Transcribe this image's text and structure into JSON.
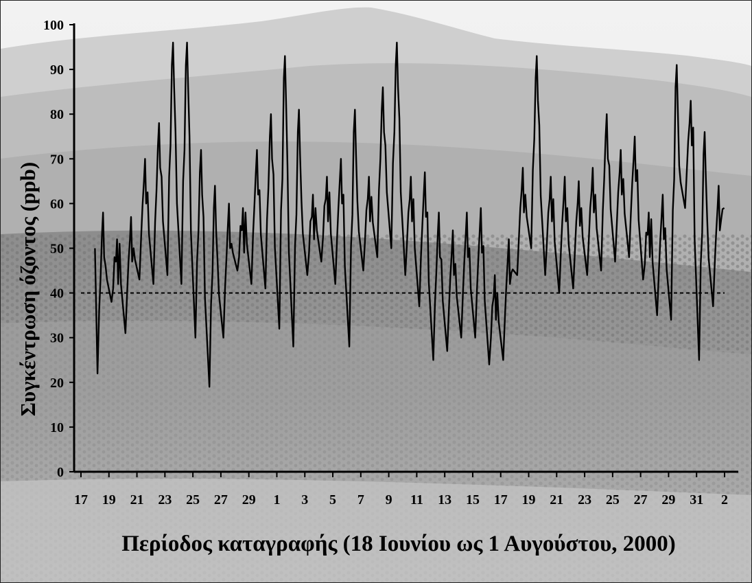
{
  "chart_data": {
    "type": "line",
    "title": "",
    "xlabel": "Περίοδος καταγραφής (18 Ιουνίου ως 1 Αυγούστου, 2000)",
    "ylabel": "Συγκέντρωση όζοντος (ppb)",
    "ylim": [
      0,
      100
    ],
    "xlim_days": [
      17,
      63
    ],
    "x_tick_labels": [
      "17",
      "19",
      "21",
      "23",
      "25",
      "27",
      "29",
      "1",
      "3",
      "5",
      "7",
      "9",
      "11",
      "13",
      "15",
      "17",
      "19",
      "21",
      "23",
      "25",
      "27",
      "29",
      "31",
      "2"
    ],
    "y_tick_labels": [
      "0",
      "10",
      "20",
      "30",
      "40",
      "50",
      "60",
      "70",
      "80",
      "90",
      "100"
    ],
    "reference_line": {
      "y": 40,
      "style": "dashed"
    },
    "grid": false,
    "background": "grayscale hillside forest photograph",
    "colors": {
      "line": "#000000",
      "reference": "#000000"
    },
    "series": [
      {
        "name": "",
        "daily_extremes": [
          {
            "date": "18 Jun",
            "max": 58,
            "min": 22
          },
          {
            "date": "19 Jun",
            "max": 52,
            "min": 38
          },
          {
            "date": "20 Jun",
            "max": 57,
            "min": 31
          },
          {
            "date": "21 Jun",
            "max": 70,
            "min": 43
          },
          {
            "date": "22 Jun",
            "max": 78,
            "min": 42
          },
          {
            "date": "23 Jun",
            "max": 96,
            "min": 44
          },
          {
            "date": "24 Jun",
            "max": 96,
            "min": 42
          },
          {
            "date": "25 Jun",
            "max": 72,
            "min": 30
          },
          {
            "date": "26 Jun",
            "max": 64,
            "min": 19
          },
          {
            "date": "27 Jun",
            "max": 60,
            "min": 30
          },
          {
            "date": "28 Jun",
            "max": 59,
            "min": 45
          },
          {
            "date": "29 Jun",
            "max": 72,
            "min": 42
          },
          {
            "date": "30 Jun",
            "max": 80,
            "min": 41
          },
          {
            "date": "1 Jul",
            "max": 93,
            "min": 32
          },
          {
            "date": "2 Jul",
            "max": 81,
            "min": 28
          },
          {
            "date": "3 Jul",
            "max": 62,
            "min": 44
          },
          {
            "date": "4 Jul",
            "max": 66,
            "min": 47
          },
          {
            "date": "5 Jul",
            "max": 70,
            "min": 42
          },
          {
            "date": "6 Jul",
            "max": 81,
            "min": 28
          },
          {
            "date": "7 Jul",
            "max": 66,
            "min": 45
          },
          {
            "date": "8 Jul",
            "max": 86,
            "min": 48
          },
          {
            "date": "9 Jul",
            "max": 96,
            "min": 50
          },
          {
            "date": "10 Jul",
            "max": 66,
            "min": 44
          },
          {
            "date": "11 Jul",
            "max": 67,
            "min": 37
          },
          {
            "date": "12 Jul",
            "max": 58,
            "min": 25
          },
          {
            "date": "13 Jul",
            "max": 54,
            "min": 27
          },
          {
            "date": "14 Jul",
            "max": 58,
            "min": 30
          },
          {
            "date": "15 Jul",
            "max": 59,
            "min": 30
          },
          {
            "date": "16 Jul",
            "max": 44,
            "min": 24
          },
          {
            "date": "17 Jul",
            "max": 52,
            "min": 25
          },
          {
            "date": "18 Jul",
            "max": 68,
            "min": 44
          },
          {
            "date": "19 Jul",
            "max": 93,
            "min": 50
          },
          {
            "date": "20 Jul",
            "max": 66,
            "min": 44
          },
          {
            "date": "21 Jul",
            "max": 66,
            "min": 40
          },
          {
            "date": "22 Jul",
            "max": 65,
            "min": 41
          },
          {
            "date": "23 Jul",
            "max": 68,
            "min": 44
          },
          {
            "date": "24 Jul",
            "max": 80,
            "min": 45
          },
          {
            "date": "25 Jul",
            "max": 72,
            "min": 47
          },
          {
            "date": "26 Jul",
            "max": 75,
            "min": 48
          },
          {
            "date": "27 Jul",
            "max": 58,
            "min": 43
          },
          {
            "date": "28 Jul",
            "max": 62,
            "min": 35
          },
          {
            "date": "29 Jul",
            "max": 91,
            "min": 34
          },
          {
            "date": "30 Jul",
            "max": 83,
            "min": 59
          },
          {
            "date": "31 Jul",
            "max": 76,
            "min": 25
          },
          {
            "date": "1 Aug",
            "max": 64,
            "min": 37
          }
        ],
        "last_value": 59
      }
    ]
  }
}
